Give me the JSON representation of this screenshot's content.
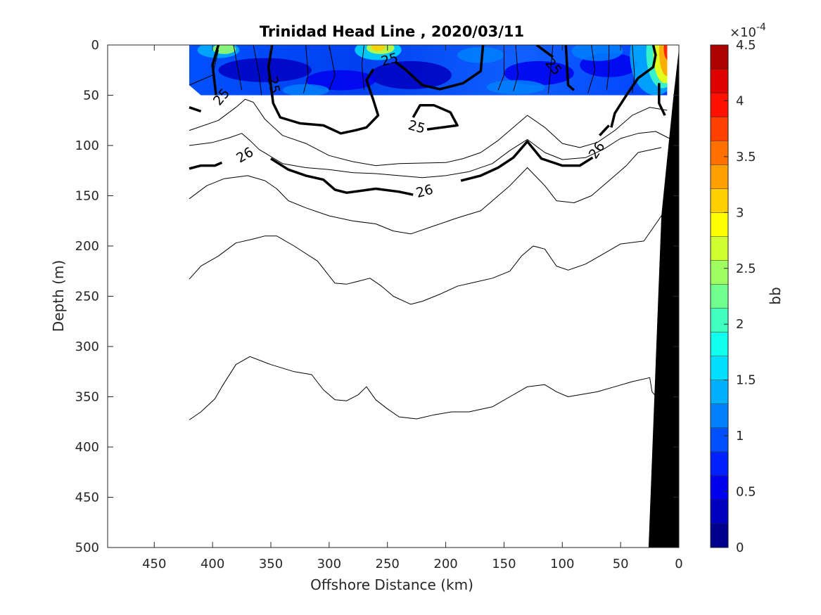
{
  "chart_data": {
    "type": "heatmap",
    "title": "Trinidad Head Line , 2020/03/11",
    "xlabel": "Offshore Distance (km)",
    "ylabel": "Depth (m)",
    "xlim": [
      490,
      0
    ],
    "ylim": [
      500,
      0
    ],
    "x_reversed": true,
    "y_reversed": true,
    "x_ticks": [
      "450",
      "400",
      "350",
      "300",
      "250",
      "200",
      "150",
      "100",
      "50",
      "0"
    ],
    "y_ticks": [
      "0",
      "50",
      "100",
      "150",
      "200",
      "250",
      "300",
      "350",
      "400",
      "450",
      "500"
    ],
    "grid": false,
    "colorbar": {
      "label": "bb",
      "exponent_label": "×10",
      "exponent_power": "-4",
      "range": [
        0,
        4.5
      ],
      "tick_labels": [
        "0",
        "0.5",
        "1",
        "1.5",
        "2",
        "2.5",
        "3",
        "3.5",
        "4",
        "4.5"
      ],
      "colors": [
        "#00008f",
        "#0000bf",
        "#0000ef",
        "#0020ff",
        "#0050ff",
        "#0080ff",
        "#00b0ff",
        "#00dfff",
        "#10ffef",
        "#40ffbf",
        "#70ff8f",
        "#9fff60",
        "#cfff30",
        "#ffff00",
        "#ffcf00",
        "#ff9f00",
        "#ff7000",
        "#ff4000",
        "#ff1000",
        "#df0000",
        "#af0000"
      ]
    },
    "heatmap_extent": {
      "x": [
        420,
        10
      ],
      "depth": [
        0,
        50
      ]
    },
    "contour_labels": [
      "25",
      "25",
      "25",
      "25",
      "25",
      "26",
      "26",
      "26"
    ],
    "contours": [
      {
        "name": "",
        "bold": true,
        "points": [
          [
            420,
            62
          ],
          [
            410,
            66
          ]
        ]
      },
      {
        "name": "",
        "bold": true,
        "points": [
          [
            395,
            0
          ],
          [
            400,
            20
          ],
          [
            397,
            50
          ]
        ]
      },
      {
        "name": "",
        "bold": true,
        "points": [
          [
            349,
            0
          ],
          [
            352,
            22
          ],
          [
            348,
            58
          ],
          [
            342,
            72
          ],
          [
            325,
            78
          ],
          [
            305,
            80
          ],
          [
            290,
            88
          ],
          [
            278,
            85
          ],
          [
            268,
            82
          ],
          [
            258,
            70
          ],
          [
            262,
            55
          ],
          [
            268,
            35
          ],
          [
            262,
            24
          ]
        ]
      },
      {
        "name": "",
        "bold": true,
        "points": [
          [
            228,
            72
          ],
          [
            222,
            60
          ],
          [
            210,
            60
          ],
          [
            196,
            67
          ],
          [
            190,
            80
          ],
          [
            216,
            84
          ]
        ]
      },
      {
        "name": "",
        "bold": true,
        "points": [
          [
            243,
            17
          ],
          [
            235,
            24
          ],
          [
            220,
            40
          ],
          [
            205,
            44
          ],
          [
            185,
            38
          ],
          [
            170,
            26
          ],
          [
            168,
            0
          ]
        ]
      },
      {
        "name": "",
        "bold": true,
        "points": [
          [
            97,
            0
          ],
          [
            95,
            40
          ],
          [
            90,
            45
          ]
        ]
      },
      {
        "name": "",
        "bold": true,
        "points": [
          [
            122,
            0
          ],
          [
            108,
            12
          ]
        ]
      },
      {
        "name": "",
        "bold": true,
        "points": [
          [
            22,
            0
          ],
          [
            20,
            10
          ],
          [
            22,
            22
          ],
          [
            35,
            33
          ],
          [
            45,
            50
          ],
          [
            55,
            68
          ],
          [
            58,
            82
          ]
        ]
      },
      {
        "name": "",
        "bold": true,
        "points": [
          [
            17,
            38
          ],
          [
            17,
            58
          ],
          [
            12,
            70
          ]
        ]
      },
      {
        "name": "",
        "bold": true,
        "points": [
          [
            420,
            123
          ],
          [
            410,
            120
          ],
          [
            398,
            120
          ],
          [
            392,
            117
          ]
        ]
      },
      {
        "name": "",
        "bold": true,
        "points": [
          [
            350,
            113
          ],
          [
            335,
            124
          ],
          [
            320,
            130
          ],
          [
            305,
            134
          ],
          [
            295,
            144
          ],
          [
            285,
            147
          ],
          [
            260,
            143
          ],
          [
            240,
            146
          ],
          [
            228,
            149
          ]
        ]
      },
      {
        "name": "",
        "bold": true,
        "points": [
          [
            187,
            135
          ],
          [
            170,
            130
          ],
          [
            155,
            122
          ],
          [
            142,
            112
          ],
          [
            130,
            96
          ],
          [
            118,
            113
          ],
          [
            100,
            120
          ],
          [
            85,
            120
          ],
          [
            74,
            112
          ]
        ]
      },
      {
        "name": "",
        "bold": true,
        "points": [
          [
            60,
            80
          ],
          [
            68,
            90
          ]
        ]
      },
      {
        "name": "",
        "bold": false,
        "points": [
          [
            420,
            85
          ],
          [
            395,
            75
          ],
          [
            380,
            62
          ],
          [
            372,
            54
          ],
          [
            365,
            57
          ],
          [
            355,
            74
          ],
          [
            340,
            90
          ],
          [
            320,
            98
          ],
          [
            300,
            110
          ],
          [
            280,
            116
          ],
          [
            260,
            120
          ],
          [
            240,
            118
          ],
          [
            200,
            117
          ],
          [
            185,
            113
          ],
          [
            170,
            107
          ],
          [
            155,
            95
          ],
          [
            140,
            80
          ],
          [
            130,
            70
          ],
          [
            115,
            82
          ],
          [
            100,
            98
          ],
          [
            85,
            102
          ],
          [
            70,
            97
          ],
          [
            55,
            85
          ],
          [
            40,
            70
          ],
          [
            25,
            62
          ],
          [
            10,
            65
          ]
        ]
      },
      {
        "name": "",
        "bold": false,
        "points": [
          [
            420,
            100
          ],
          [
            400,
            97
          ],
          [
            385,
            92
          ],
          [
            375,
            88
          ],
          [
            368,
            95
          ],
          [
            360,
            104
          ],
          [
            340,
            118
          ],
          [
            320,
            122
          ],
          [
            300,
            124
          ],
          [
            280,
            127
          ],
          [
            260,
            128
          ],
          [
            220,
            132
          ],
          [
            200,
            130
          ],
          [
            180,
            126
          ],
          [
            160,
            118
          ],
          [
            145,
            105
          ],
          [
            130,
            94
          ],
          [
            115,
            107
          ],
          [
            100,
            114
          ],
          [
            80,
            112
          ],
          [
            65,
            104
          ],
          [
            50,
            93
          ],
          [
            35,
            88
          ],
          [
            20,
            86
          ],
          [
            8,
            93
          ]
        ]
      },
      {
        "name": "",
        "bold": false,
        "points": [
          [
            420,
            153
          ],
          [
            405,
            140
          ],
          [
            390,
            133
          ],
          [
            370,
            130
          ],
          [
            355,
            135
          ],
          [
            345,
            143
          ],
          [
            335,
            155
          ],
          [
            320,
            162
          ],
          [
            300,
            170
          ],
          [
            280,
            175
          ],
          [
            260,
            178
          ],
          [
            245,
            185
          ],
          [
            230,
            188
          ],
          [
            210,
            180
          ],
          [
            190,
            172
          ],
          [
            170,
            165
          ],
          [
            160,
            155
          ],
          [
            145,
            140
          ],
          [
            130,
            122
          ],
          [
            115,
            140
          ],
          [
            105,
            155
          ],
          [
            90,
            157
          ],
          [
            75,
            150
          ],
          [
            60,
            135
          ],
          [
            45,
            120
          ],
          [
            35,
            107
          ],
          [
            15,
            102
          ]
        ]
      },
      {
        "name": "",
        "bold": false,
        "points": [
          [
            420,
            233
          ],
          [
            410,
            220
          ],
          [
            395,
            210
          ],
          [
            380,
            197
          ],
          [
            365,
            193
          ],
          [
            355,
            190
          ],
          [
            345,
            190
          ],
          [
            330,
            200
          ],
          [
            310,
            215
          ],
          [
            295,
            237
          ],
          [
            285,
            238
          ],
          [
            275,
            235
          ],
          [
            265,
            232
          ],
          [
            255,
            240
          ],
          [
            245,
            250
          ],
          [
            230,
            258
          ],
          [
            220,
            255
          ],
          [
            205,
            248
          ],
          [
            190,
            240
          ],
          [
            175,
            236
          ],
          [
            160,
            232
          ],
          [
            145,
            225
          ],
          [
            135,
            210
          ],
          [
            125,
            200
          ],
          [
            115,
            203
          ],
          [
            105,
            220
          ],
          [
            95,
            224
          ],
          [
            80,
            218
          ],
          [
            65,
            208
          ],
          [
            50,
            198
          ],
          [
            30,
            195
          ],
          [
            15,
            170
          ],
          [
            8,
            158
          ]
        ]
      },
      {
        "name": "",
        "bold": false,
        "points": [
          [
            420,
            373
          ],
          [
            410,
            365
          ],
          [
            398,
            352
          ],
          [
            392,
            340
          ],
          [
            380,
            318
          ],
          [
            368,
            310
          ],
          [
            350,
            318
          ],
          [
            330,
            325
          ],
          [
            315,
            328
          ],
          [
            305,
            343
          ],
          [
            295,
            353
          ],
          [
            285,
            354
          ],
          [
            275,
            348
          ],
          [
            268,
            340
          ],
          [
            260,
            353
          ],
          [
            250,
            362
          ],
          [
            240,
            370
          ],
          [
            225,
            372
          ],
          [
            210,
            368
          ],
          [
            195,
            365
          ],
          [
            180,
            365
          ],
          [
            160,
            360
          ],
          [
            145,
            350
          ],
          [
            130,
            340
          ],
          [
            115,
            338
          ],
          [
            105,
            345
          ],
          [
            95,
            350
          ],
          [
            85,
            348
          ],
          [
            70,
            345
          ],
          [
            55,
            340
          ],
          [
            40,
            335
          ],
          [
            25,
            331
          ],
          [
            23,
            345
          ],
          [
            15,
            356
          ]
        ]
      },
      {
        "name": "",
        "bold": false,
        "points": [
          [
            420,
            40
          ],
          [
            410,
            35
          ],
          [
            400,
            30
          ],
          [
            395,
            5
          ]
        ]
      },
      {
        "name": "",
        "bold": false,
        "points": [
          [
            382,
            0
          ],
          [
            378,
            25
          ],
          [
            375,
            45
          ]
        ]
      },
      {
        "name": "",
        "bold": false,
        "points": [
          [
            365,
            0
          ],
          [
            360,
            30
          ],
          [
            358,
            50
          ]
        ]
      },
      {
        "name": "",
        "bold": false,
        "points": [
          [
            320,
            0
          ],
          [
            318,
            30
          ],
          [
            322,
            48
          ]
        ]
      },
      {
        "name": "",
        "bold": false,
        "points": [
          [
            300,
            0
          ],
          [
            295,
            30
          ],
          [
            300,
            45
          ]
        ]
      },
      {
        "name": "",
        "bold": false,
        "points": [
          [
            270,
            0
          ],
          [
            272,
            20
          ],
          [
            270,
            45
          ]
        ]
      },
      {
        "name": "",
        "bold": false,
        "points": [
          [
            150,
            0
          ],
          [
            150,
            30
          ],
          [
            155,
            45
          ]
        ]
      },
      {
        "name": "",
        "bold": false,
        "points": [
          [
            140,
            0
          ],
          [
            138,
            30
          ],
          [
            142,
            46
          ]
        ]
      },
      {
        "name": "",
        "bold": false,
        "points": [
          [
            108,
            0
          ],
          [
            110,
            25
          ],
          [
            112,
            48
          ]
        ]
      },
      {
        "name": "",
        "bold": false,
        "points": [
          [
            75,
            0
          ],
          [
            72,
            25
          ],
          [
            78,
            48
          ]
        ]
      },
      {
        "name": "",
        "bold": false,
        "points": [
          [
            60,
            0
          ],
          [
            60,
            25
          ],
          [
            62,
            45
          ]
        ]
      },
      {
        "name": "",
        "bold": false,
        "points": [
          [
            40,
            0
          ],
          [
            38,
            30
          ],
          [
            40,
            48
          ]
        ]
      }
    ],
    "bathymetry": {
      "points": [
        [
          0,
          0
        ],
        [
          0,
          500
        ],
        [
          26,
          500
        ],
        [
          15,
          170
        ],
        [
          5,
          55
        ],
        [
          0,
          4
        ]
      ]
    }
  }
}
